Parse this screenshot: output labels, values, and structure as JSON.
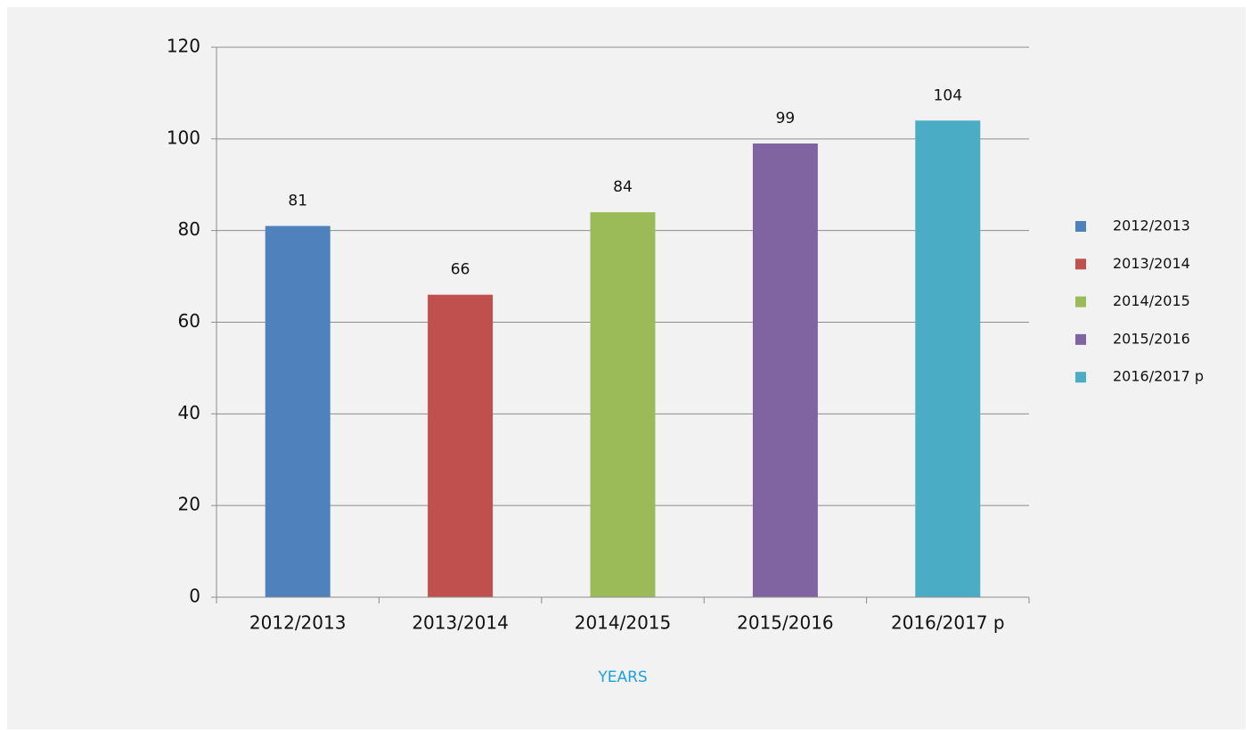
{
  "chart_data": {
    "type": "bar",
    "categories": [
      "2012/2013",
      "2013/2014",
      "2014/2015",
      "2015/2016",
      "2016/2017 p"
    ],
    "values": [
      81,
      66,
      84,
      99,
      104
    ],
    "colors": [
      "#4f81bd",
      "#c0504d",
      "#9bbb59",
      "#8064a2",
      "#4bacc6"
    ],
    "x_label": "YEARS",
    "ylim": [
      0,
      120
    ],
    "yticks": [
      0,
      20,
      40,
      60,
      80,
      100,
      120
    ],
    "grid": true,
    "legend": "right"
  }
}
